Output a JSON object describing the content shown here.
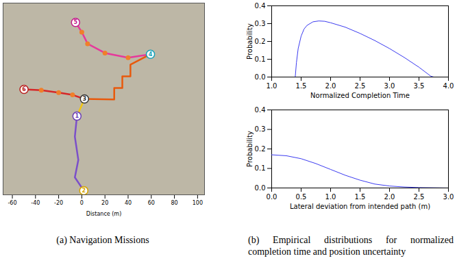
{
  "chart_data": [
    {
      "type": "map",
      "x_label": "Distance (m)",
      "xlim": [
        -68,
        106
      ],
      "xticks": [
        -60,
        -40,
        -20,
        0,
        20,
        40,
        60,
        80,
        100
      ],
      "ylim": [
        0,
        165
      ],
      "tick_labels": "x",
      "paths": [
        {
          "color": "#d62728",
          "marker": "circle",
          "points": [
            [
              -49.9,
              90.8
            ],
            [
              -35,
              90
            ],
            [
              -20,
              88
            ],
            [
              -8,
              86
            ],
            [
              2.3,
              82.5
            ]
          ]
        },
        {
          "color": "#e6399b",
          "marker": "circle",
          "points": [
            [
              -5.4,
              148.4
            ],
            [
              0,
              140
            ],
            [
              5,
              130
            ],
            [
              20,
              122
            ],
            [
              40,
              118
            ],
            [
              59.3,
              121
            ]
          ]
        },
        {
          "color": "#e8590c",
          "line_style": "solid",
          "points": [
            [
              2.3,
              82.5
            ],
            [
              28,
              82
            ],
            [
              28,
              92
            ],
            [
              35,
              92
            ],
            [
              35,
              102
            ],
            [
              42,
              102
            ],
            [
              42,
              112
            ],
            [
              59.3,
              121
            ]
          ]
        },
        {
          "color": "#7b4fc9",
          "points": [
            [
              -4.2,
              67.7
            ],
            [
              -6,
              50
            ],
            [
              -3,
              30
            ],
            [
              -6,
              15
            ],
            [
              1.7,
              3.6
            ]
          ]
        },
        {
          "color": "#f2c511",
          "points": [
            [
              2.3,
              82.5
            ],
            [
              -1,
              75
            ],
            [
              -4.2,
              67.7
            ]
          ]
        }
      ],
      "waypoints": [
        {
          "label": "5",
          "x": -5.4,
          "y": 148.4,
          "color": "#c2188b"
        },
        {
          "label": "4",
          "x": 59.3,
          "y": 121,
          "color": "#17a2b8"
        },
        {
          "label": "6",
          "x": -49.9,
          "y": 90.8,
          "color": "#b71c1c"
        },
        {
          "label": "3",
          "x": 2.3,
          "y": 82.5,
          "color": "#333333"
        },
        {
          "label": "1",
          "x": -4.2,
          "y": 67.7,
          "color": "#6a3fb5"
        },
        {
          "label": "2",
          "x": 1.7,
          "y": 3.6,
          "color": "#d4a400"
        }
      ]
    },
    {
      "type": "line",
      "x_label": "Normalized Completion Time",
      "y_label": "Probability",
      "xlim": [
        1.0,
        4.0
      ],
      "xticks": [
        {
          "value": 1,
          "label": "1.0"
        },
        {
          "value": 1.5,
          "label": "1.5"
        },
        {
          "value": 2,
          "label": "2.0"
        },
        {
          "value": 2.5,
          "label": "2.5"
        },
        {
          "value": 3,
          "label": "3.0"
        },
        {
          "value": 3.5,
          "label": "3.5"
        },
        {
          "value": 4,
          "label": "4.0"
        }
      ],
      "ylim": [
        0.0,
        0.4
      ],
      "yticks": [
        {
          "value": 0,
          "label": "0.0"
        },
        {
          "value": 0.1,
          "label": "0.1"
        },
        {
          "value": 0.2,
          "label": "0.2"
        },
        {
          "value": 0.3,
          "label": "0.3"
        },
        {
          "value": 0.4,
          "label": "0.4"
        }
      ],
      "color": "#3b3bf0",
      "x": [
        1.4,
        1.42,
        1.45,
        1.5,
        1.55,
        1.6,
        1.7,
        1.8,
        1.9,
        2.0,
        2.25,
        2.5,
        2.75,
        3.0,
        3.25,
        3.5,
        3.7,
        3.75
      ],
      "values": [
        0.0,
        0.08,
        0.16,
        0.23,
        0.27,
        0.29,
        0.31,
        0.315,
        0.313,
        0.305,
        0.28,
        0.245,
        0.205,
        0.16,
        0.11,
        0.055,
        0.005,
        0.0
      ]
    },
    {
      "type": "line",
      "x_label": "Lateral deviation from intended path (m)",
      "y_label": "Probability",
      "xlim": [
        0.0,
        3.0
      ],
      "xticks": [
        {
          "value": 0,
          "label": "0.0"
        },
        {
          "value": 0.5,
          "label": "0.5"
        },
        {
          "value": 1,
          "label": "1.0"
        },
        {
          "value": 1.5,
          "label": "1.5"
        },
        {
          "value": 2,
          "label": "2.0"
        },
        {
          "value": 2.5,
          "label": "2.5"
        },
        {
          "value": 3,
          "label": "3.0"
        }
      ],
      "ylim": [
        0.0,
        0.4
      ],
      "yticks": [
        {
          "value": 0,
          "label": "0.0"
        },
        {
          "value": 0.1,
          "label": "0.1"
        },
        {
          "value": 0.2,
          "label": "0.2"
        },
        {
          "value": 0.3,
          "label": "0.3"
        },
        {
          "value": 0.4,
          "label": "0.4"
        }
      ],
      "color": "#3b3bf0",
      "x": [
        0.0,
        0.25,
        0.5,
        0.75,
        1.0,
        1.25,
        1.5,
        1.75,
        2.0,
        2.25,
        2.5,
        3.0
      ],
      "values": [
        0.17,
        0.165,
        0.15,
        0.125,
        0.095,
        0.065,
        0.04,
        0.02,
        0.01,
        0.005,
        0.002,
        0.0
      ]
    }
  ],
  "captions": [
    "(a) Navigation Missions",
    "(b) Empirical distributions for normalized completion time and position uncertainty"
  ]
}
